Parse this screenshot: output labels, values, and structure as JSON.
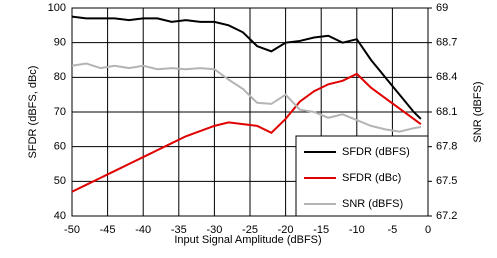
{
  "chart_data": {
    "type": "line",
    "xlabel": "Input Signal Amplitude (dBFS)",
    "ylabel": "SFDR (dBFS, dBc)",
    "y2label": "SNR (dBFS)",
    "x": [
      -50,
      -48,
      -46,
      -44,
      -42,
      -40,
      -38,
      -36,
      -34,
      -32,
      -30,
      -28,
      -26,
      -24,
      -22,
      -20,
      -18,
      -16,
      -14,
      -12,
      -10,
      -8,
      -6,
      -4,
      -2,
      -1
    ],
    "series": [
      {
        "name": "SFDR (dBFS)",
        "color": "#000000",
        "values": [
          97.5,
          97,
          97,
          97,
          96.5,
          97,
          97,
          96,
          96.5,
          96,
          96,
          95,
          93,
          89,
          87.5,
          90,
          90.5,
          91.5,
          92,
          90,
          91,
          85,
          80,
          75,
          70,
          68
        ]
      },
      {
        "name": "SFDR (dBc)",
        "color": "#e00000",
        "values": [
          47,
          49,
          51,
          53,
          55,
          57,
          59,
          61,
          63,
          64.5,
          66,
          67,
          66.5,
          66,
          64,
          68,
          73,
          76,
          78,
          79,
          81,
          77,
          74,
          71,
          68,
          66.5
        ]
      },
      {
        "name": "SNR (dBFS)",
        "color": "#b4b4b4",
        "axis": "y2",
        "values": [
          68.5,
          68.52,
          68.48,
          68.5,
          68.48,
          68.5,
          68.47,
          68.48,
          68.47,
          68.48,
          68.47,
          68.38,
          68.3,
          68.18,
          68.17,
          68.25,
          68.12,
          68.1,
          68.05,
          68.08,
          68.03,
          67.98,
          67.95,
          67.93,
          67.96,
          67.97
        ]
      }
    ],
    "xlim": [
      -50,
      0
    ],
    "xticks": [
      -50,
      -45,
      -40,
      -35,
      -30,
      -25,
      -20,
      -15,
      -10,
      -5,
      0
    ],
    "ylim": [
      40,
      100
    ],
    "yticks": [
      40,
      50,
      60,
      70,
      80,
      90,
      100
    ],
    "y2lim": [
      67.2,
      69
    ],
    "y2ticks": [
      67.2,
      67.5,
      67.8,
      68.1,
      68.4,
      68.7,
      69
    ],
    "grid": true,
    "legend": "lower right"
  }
}
